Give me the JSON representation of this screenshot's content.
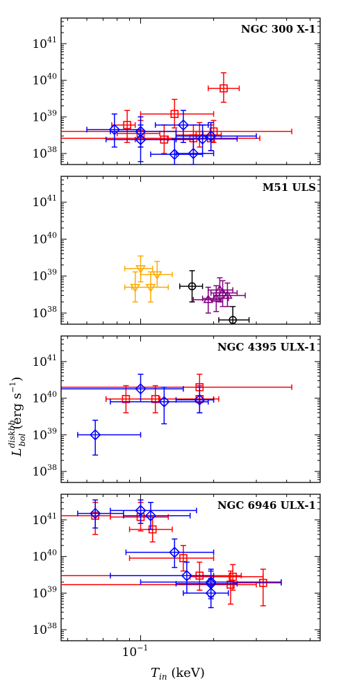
{
  "figure": {
    "xlabel": "T_in (keV)",
    "ylabel": "L_bol^diskbb (erg s^-1)"
  },
  "chart_data": [
    {
      "type": "scatter",
      "title": "NGC 300 X-1",
      "xscale": "log",
      "yscale": "log",
      "xlim": [
        0.047,
        0.55
      ],
      "ylim": [
        5e+37,
        5e+41
      ],
      "yticks": [
        {
          "v": 1e+38,
          "exp": "38"
        },
        {
          "v": 1e+39,
          "exp": "39"
        },
        {
          "v": 1e+40,
          "exp": "40"
        },
        {
          "v": 1e+41,
          "exp": "41"
        }
      ],
      "series": [
        {
          "color": "#ff0000",
          "marker": "square",
          "points": [
            {
              "x": 0.088,
              "y": 6e+38,
              "xe": [
                0.076,
                0.095
              ],
              "ye": [
                2e+38,
                1.5e+39
              ]
            },
            {
              "x": 0.1,
              "y": 3.5e+38,
              "xe": [
                0.08,
                0.12
              ],
              "ye": [
                1.5e+38,
                8e+38
              ]
            },
            {
              "x": 0.125,
              "y": 2.4e+38,
              "xe": [
                0.095,
                0.165
              ],
              "ye": [
                1e+38,
                6e+38
              ]
            },
            {
              "x": 0.138,
              "y": 1.2e+39,
              "xe": [
                0.1,
                0.2
              ],
              "ye": [
                5e+38,
                3e+39
              ]
            },
            {
              "x": 0.165,
              "y": 2.6e+38,
              "xe": [
                0.13,
                0.2
              ],
              "ye": [
                1e+38,
                6e+38
              ]
            },
            {
              "x": 0.175,
              "y": 3.2e+38,
              "xe": [
                0.14,
                0.215
              ],
              "ye": [
                1.5e+38,
                7e+38
              ]
            },
            {
              "x": 0.2,
              "y": 4e+38,
              "xe": [
                0.047,
                0.42
              ],
              "ye": [
                2e+38,
                8e+38
              ]
            },
            {
              "x": 0.22,
              "y": 6e+39,
              "xe": [
                0.19,
                0.255
              ],
              "ye": [
                2.5e+39,
                1.6e+40
              ]
            },
            {
              "x": 0.195,
              "y": 2.6e+38,
              "xe": [
                0.047,
                0.31
              ],
              "ye": [
                1.2e+38,
                6e+38
              ]
            }
          ]
        },
        {
          "color": "#0000ff",
          "marker": "diamond",
          "points": [
            {
              "x": 0.078,
              "y": 4.5e+38,
              "xe": [
                0.06,
                0.1
              ],
              "ye": [
                1.5e+38,
                1.2e+39
              ]
            },
            {
              "x": 0.1,
              "y": 4e+38,
              "xe": [
                0.075,
                0.14
              ],
              "ye": [
                1.5e+38,
                1e+39
              ]
            },
            {
              "x": 0.1,
              "y": 2.4e+38,
              "xe": [
                0.072,
                0.14
              ],
              "ye": [
                6e+37,
                6e+38
              ]
            },
            {
              "x": 0.138,
              "y": 9.5e+37,
              "xe": [
                0.11,
                0.18
              ],
              "ye": [
                5e+37,
                2.5e+38
              ]
            },
            {
              "x": 0.15,
              "y": 6e+38,
              "xe": [
                0.115,
                0.19
              ],
              "ye": [
                2e+38,
                1.5e+39
              ]
            },
            {
              "x": 0.165,
              "y": 1e+38,
              "xe": [
                0.14,
                0.2
              ],
              "ye": [
                5e+37,
                2.5e+38
              ]
            },
            {
              "x": 0.18,
              "y": 2.5e+38,
              "xe": [
                0.14,
                0.25
              ],
              "ye": [
                1e+38,
                6e+38
              ]
            },
            {
              "x": 0.195,
              "y": 3e+38,
              "xe": [
                0.14,
                0.3
              ],
              "ye": [
                1.2e+38,
                7e+38
              ]
            }
          ]
        }
      ]
    },
    {
      "type": "scatter",
      "title": "M51 ULS",
      "xscale": "log",
      "yscale": "log",
      "xlim": [
        0.047,
        0.55
      ],
      "ylim": [
        5e+37,
        5e+41
      ],
      "yticks": [
        {
          "v": 1e+38,
          "exp": "38"
        },
        {
          "v": 1e+39,
          "exp": "39"
        },
        {
          "v": 1e+40,
          "exp": "40"
        },
        {
          "v": 1e+41,
          "exp": "41"
        }
      ],
      "series": [
        {
          "color": "#ffaa00",
          "marker": "triangle-down",
          "points": [
            {
              "x": 0.1,
              "y": 1.6e+39,
              "xe": [
                0.086,
                0.112
              ],
              "ye": [
                7e+38,
                3.5e+39
              ]
            },
            {
              "x": 0.11,
              "y": 5e+38,
              "xe": [
                0.092,
                0.13
              ],
              "ye": [
                2e+38,
                1.3e+39
              ]
            },
            {
              "x": 0.117,
              "y": 1.1e+39,
              "xe": [
                0.1,
                0.135
              ],
              "ye": [
                5e+38,
                2.5e+39
              ]
            },
            {
              "x": 0.095,
              "y": 5e+38,
              "xe": [
                0.086,
                0.11
              ],
              "ye": [
                2e+38,
                1.3e+39
              ]
            }
          ]
        },
        {
          "color": "#000000",
          "marker": "circle",
          "points": [
            {
              "x": 0.163,
              "y": 5.3e+38,
              "xe": [
                0.145,
                0.18
              ],
              "ye": [
                2e+38,
                1.4e+39
              ]
            },
            {
              "x": 0.24,
              "y": 6.5e+37,
              "xe": [
                0.21,
                0.28
              ],
              "ye": [
                5e+37,
                1.5e+38
              ]
            }
          ]
        },
        {
          "color": "#800080",
          "marker": "triangle-up",
          "points": [
            {
              "x": 0.19,
              "y": 2.3e+38,
              "xe": [
                0.165,
                0.215
              ],
              "ye": [
                1e+38,
                5e+38
              ]
            },
            {
              "x": 0.205,
              "y": 2.5e+38,
              "xe": [
                0.18,
                0.23
              ],
              "ye": [
                1.1e+38,
                5.5e+38
              ]
            },
            {
              "x": 0.212,
              "y": 4.2e+38,
              "xe": [
                0.19,
                0.24
              ],
              "ye": [
                2e+38,
                9e+38
              ]
            },
            {
              "x": 0.218,
              "y": 3.5e+38,
              "xe": [
                0.195,
                0.25
              ],
              "ye": [
                1.5e+38,
                7.5e+38
              ]
            },
            {
              "x": 0.228,
              "y": 3e+38,
              "xe": [
                0.2,
                0.27
              ],
              "ye": [
                1.5e+38,
                6.5e+38
              ]
            }
          ]
        }
      ]
    },
    {
      "type": "scatter",
      "title": "NGC 4395 ULX-1",
      "xscale": "log",
      "yscale": "log",
      "xlim": [
        0.047,
        0.55
      ],
      "ylim": [
        5e+37,
        5e+41
      ],
      "yticks": [
        {
          "v": 1e+38,
          "exp": "38"
        },
        {
          "v": 1e+39,
          "exp": "39"
        },
        {
          "v": 1e+40,
          "exp": "40"
        },
        {
          "v": 1e+41,
          "exp": "41"
        }
      ],
      "series": [
        {
          "color": "#ff0000",
          "marker": "square",
          "points": [
            {
              "x": 0.087,
              "y": 9.5e+39,
              "xe": [
                0.072,
                0.125
              ],
              "ye": [
                4e+39,
                2.2e+40
              ]
            },
            {
              "x": 0.115,
              "y": 9.5e+39,
              "xe": [
                0.072,
                0.2
              ],
              "ye": [
                4e+39,
                2.2e+40
              ]
            },
            {
              "x": 0.175,
              "y": 2e+40,
              "xe": [
                0.047,
                0.42
              ],
              "ye": [
                8e+39,
                4.5e+40
              ]
            },
            {
              "x": 0.175,
              "y": 9.5e+39,
              "xe": [
                0.12,
                0.21
              ],
              "ye": [
                4e+39,
                2.2e+40
              ]
            }
          ]
        },
        {
          "color": "#0000ff",
          "marker": "diamond",
          "points": [
            {
              "x": 0.065,
              "y": 1e+39,
              "xe": [
                0.055,
                0.1
              ],
              "ye": [
                2.8e+38,
                2.5e+39
              ]
            },
            {
              "x": 0.1,
              "y": 1.8e+40,
              "xe": [
                0.047,
                0.15
              ],
              "ye": [
                8e+39,
                4.5e+40
              ]
            },
            {
              "x": 0.125,
              "y": 8e+39,
              "xe": [
                0.075,
                0.19
              ],
              "ye": [
                2e+39,
                2e+40
              ]
            },
            {
              "x": 0.175,
              "y": 9e+39,
              "xe": [
                0.14,
                0.2
              ],
              "ye": [
                4e+39,
                2e+40
              ]
            }
          ]
        }
      ]
    },
    {
      "type": "scatter",
      "title": "NGC 6946 ULX-1",
      "xscale": "log",
      "yscale": "log",
      "xlim": [
        0.047,
        0.55
      ],
      "ylim": [
        5e+37,
        5e+41
      ],
      "yticks": [
        {
          "v": 1e+38,
          "exp": "38"
        },
        {
          "v": 1e+39,
          "exp": "39"
        },
        {
          "v": 1e+40,
          "exp": "40"
        },
        {
          "v": 1e+41,
          "exp": "41"
        }
      ],
      "xticks": [
        {
          "v": 0.1,
          "label": "10^-1"
        }
      ],
      "series": [
        {
          "color": "#ff0000",
          "marker": "square",
          "points": [
            {
              "x": 0.065,
              "y": 1.3e+41,
              "xe": [
                0.047,
                0.075
              ],
              "ye": [
                4e+40,
                3e+41
              ]
            },
            {
              "x": 0.1,
              "y": 1.2e+41,
              "xe": [
                0.075,
                0.13
              ],
              "ye": [
                5e+40,
                3e+41
              ]
            },
            {
              "x": 0.112,
              "y": 5.5e+40,
              "xe": [
                0.09,
                0.135
              ],
              "ye": [
                2.5e+40,
                1.2e+41
              ]
            },
            {
              "x": 0.15,
              "y": 9e+39,
              "xe": [
                0.09,
                0.2
              ],
              "ye": [
                4e+39,
                2e+40
              ]
            },
            {
              "x": 0.175,
              "y": 3e+39,
              "xe": [
                0.047,
                0.26
              ],
              "ye": [
                1.2e+39,
                7e+39
              ]
            },
            {
              "x": 0.24,
              "y": 2.8e+39,
              "xe": [
                0.16,
                0.32
              ],
              "ye": [
                1.2e+39,
                6e+39
              ]
            },
            {
              "x": 0.235,
              "y": 1.7e+39,
              "xe": [
                0.047,
                0.3
              ],
              "ye": [
                5e+38,
                4e+39
              ]
            },
            {
              "x": 0.32,
              "y": 1.9e+39,
              "xe": [
                0.24,
                0.38
              ],
              "ye": [
                4.5e+38,
                4.5e+39
              ]
            }
          ]
        },
        {
          "color": "#0000ff",
          "marker": "diamond",
          "points": [
            {
              "x": 0.065,
              "y": 1.5e+41,
              "xe": [
                0.055,
                0.085
              ],
              "ye": [
                6e+40,
                3.5e+41
              ]
            },
            {
              "x": 0.1,
              "y": 1.8e+41,
              "xe": [
                0.075,
                0.17
              ],
              "ye": [
                8e+40,
                3.5e+41
              ]
            },
            {
              "x": 0.11,
              "y": 1.3e+41,
              "xe": [
                0.085,
                0.16
              ],
              "ye": [
                5.5e+40,
                3e+41
              ]
            },
            {
              "x": 0.138,
              "y": 1.3e+40,
              "xe": [
                0.087,
                0.2
              ],
              "ye": [
                5e+39,
                3e+40
              ]
            },
            {
              "x": 0.155,
              "y": 3e+39,
              "xe": [
                0.075,
                0.2
              ],
              "ye": [
                1e+39,
                7e+39
              ]
            },
            {
              "x": 0.195,
              "y": 2e+39,
              "xe": [
                0.1,
                0.38
              ],
              "ye": [
                8e+38,
                4.5e+39
              ]
            },
            {
              "x": 0.195,
              "y": 1.8e+39,
              "xe": [
                0.14,
                0.25
              ],
              "ye": [
                7e+38,
                4e+39
              ]
            },
            {
              "x": 0.195,
              "y": 1e+39,
              "xe": [
                0.15,
                0.23
              ],
              "ye": [
                4e+38,
                2.5e+39
              ]
            }
          ]
        }
      ]
    }
  ]
}
